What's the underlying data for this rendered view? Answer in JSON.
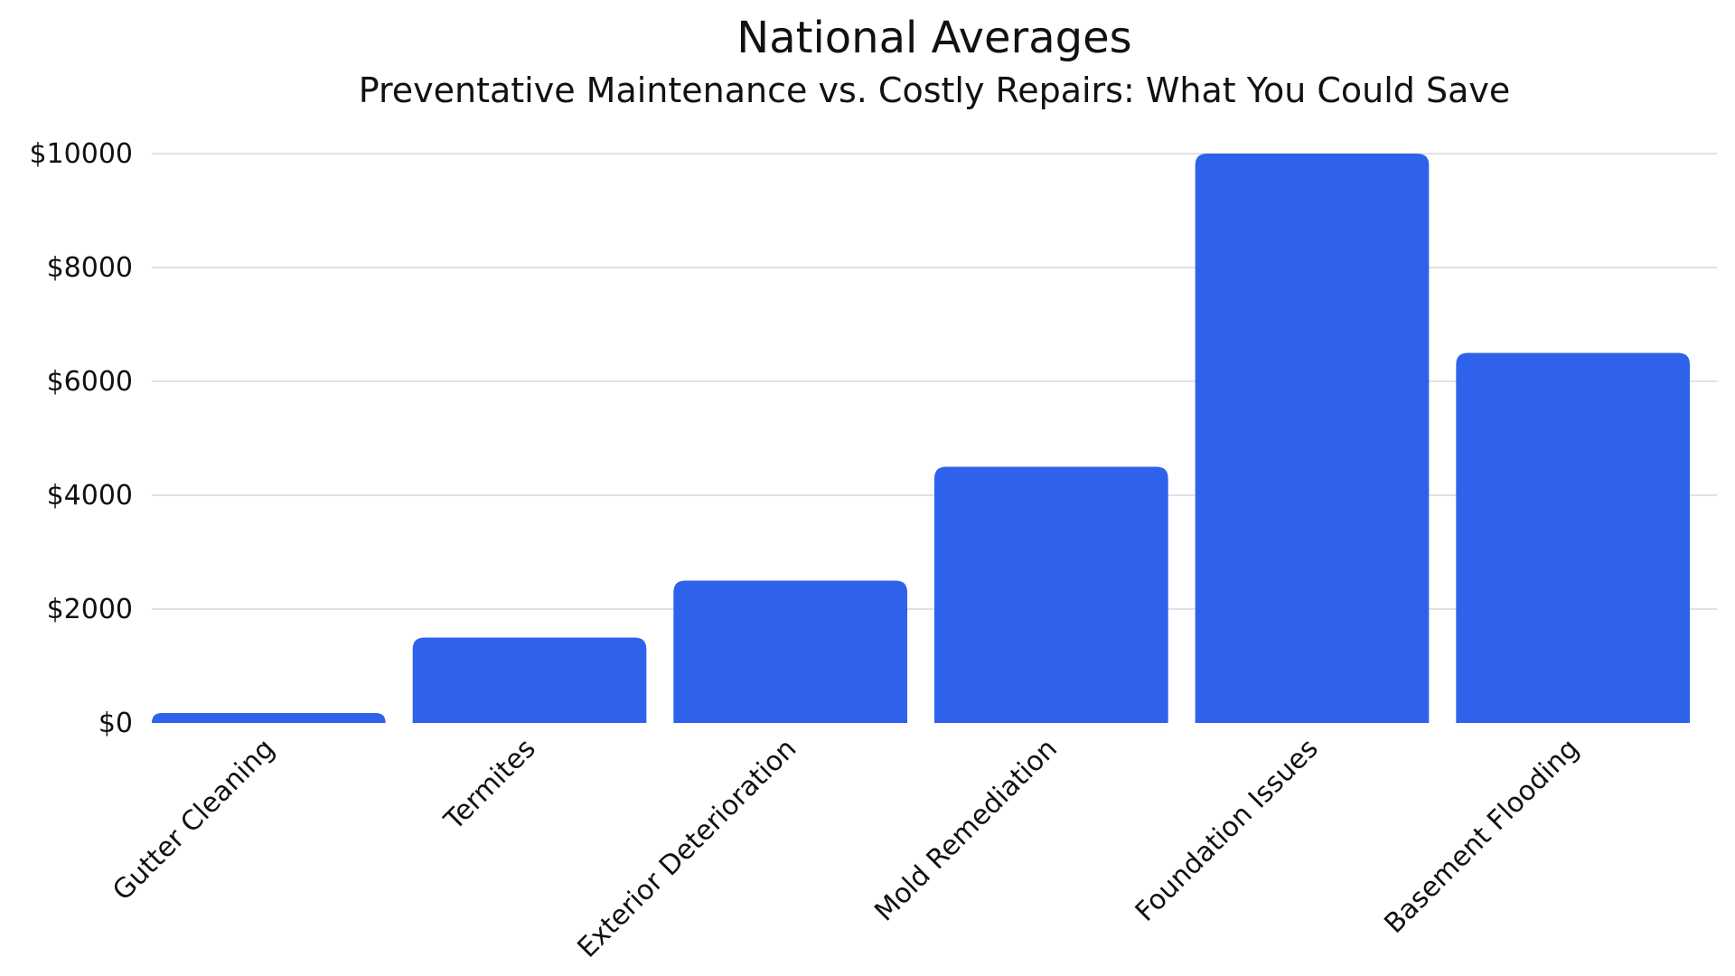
{
  "chart_data": {
    "type": "bar",
    "title": "National Averages",
    "subtitle": "Preventative Maintenance vs. Costly Repairs: What You Could Save",
    "xlabel": "",
    "ylabel": "",
    "categories": [
      "Gutter Cleaning",
      "Termites",
      "Exterior Deterioration",
      "Mold Remediation",
      "Foundation Issues",
      "Basement Flooding"
    ],
    "values": [
      175,
      1500,
      2500,
      4500,
      10000,
      6500
    ],
    "ylim": [
      0,
      10000
    ],
    "yticks": [
      0,
      2000,
      4000,
      6000,
      8000,
      10000
    ],
    "ytick_labels": [
      "$0",
      "$2000",
      "$4000",
      "$6000",
      "$8000",
      "$10000"
    ],
    "grid": true,
    "legend": "none",
    "bar_color": "#2f62eb"
  }
}
